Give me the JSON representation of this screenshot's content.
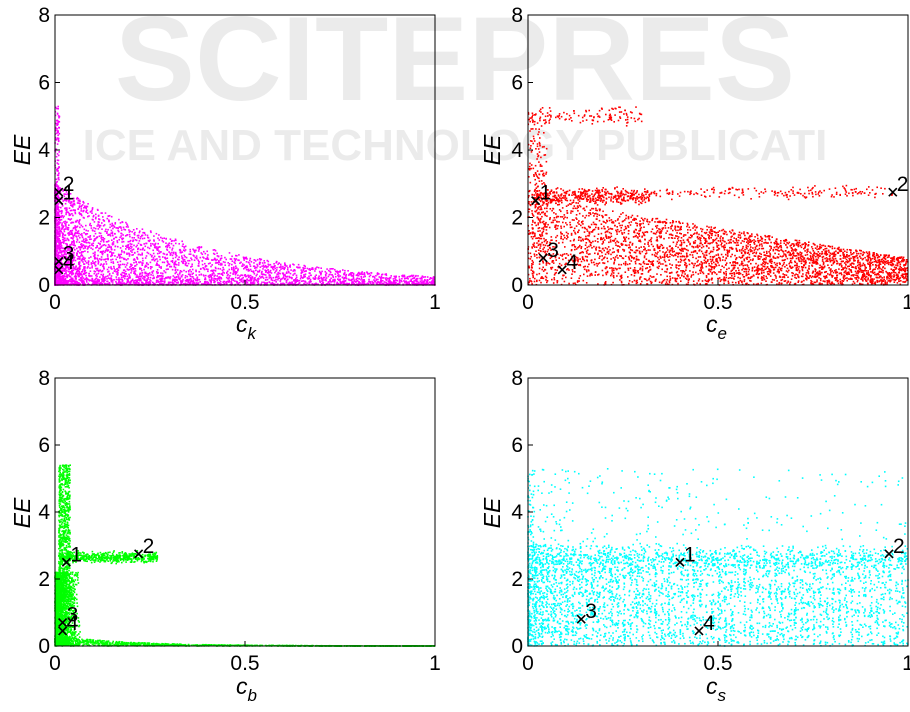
{
  "watermark": {
    "line1": "SCITEPRES",
    "line2": "ICE AND TECHNOLOGY PUBLICATI"
  },
  "chart_data": [
    {
      "type": "scatter",
      "xlabel": "c",
      "xlabel_sub": "k",
      "ylabel": "EE",
      "xlim": [
        0,
        1
      ],
      "ylim": [
        0,
        8
      ],
      "xticks": [
        "0",
        "0.5",
        "1"
      ],
      "yticks": [
        "0",
        "2",
        "4",
        "6",
        "8"
      ],
      "color": "#ff00ff",
      "pattern": "ck",
      "markers": [
        {
          "label": "1",
          "x": 0.01,
          "y": 2.5
        },
        {
          "label": "2",
          "x": 0.01,
          "y": 2.75
        },
        {
          "label": "3",
          "x": 0.01,
          "y": 0.7
        },
        {
          "label": "4",
          "x": 0.01,
          "y": 0.45
        }
      ]
    },
    {
      "type": "scatter",
      "xlabel": "c",
      "xlabel_sub": "e",
      "ylabel": "EE",
      "xlim": [
        0,
        1
      ],
      "ylim": [
        0,
        8
      ],
      "xticks": [
        "0",
        "0.5",
        "1"
      ],
      "yticks": [
        "0",
        "2",
        "4",
        "6",
        "8"
      ],
      "color": "#ff0000",
      "pattern": "ce",
      "markers": [
        {
          "label": "1",
          "x": 0.02,
          "y": 2.5
        },
        {
          "label": "2",
          "x": 0.96,
          "y": 2.75
        },
        {
          "label": "3",
          "x": 0.04,
          "y": 0.8
        },
        {
          "label": "4",
          "x": 0.09,
          "y": 0.45
        }
      ]
    },
    {
      "type": "scatter",
      "xlabel": "c",
      "xlabel_sub": "b",
      "ylabel": "EE",
      "xlim": [
        0,
        1
      ],
      "ylim": [
        0,
        8
      ],
      "xticks": [
        "0",
        "0.5",
        "1"
      ],
      "yticks": [
        "0",
        "2",
        "4",
        "6",
        "8"
      ],
      "color": "#00ff00",
      "pattern": "cb",
      "markers": [
        {
          "label": "1",
          "x": 0.03,
          "y": 2.5
        },
        {
          "label": "2",
          "x": 0.22,
          "y": 2.75
        },
        {
          "label": "3",
          "x": 0.02,
          "y": 0.7
        },
        {
          "label": "4",
          "x": 0.02,
          "y": 0.45
        }
      ]
    },
    {
      "type": "scatter",
      "xlabel": "c",
      "xlabel_sub": "s",
      "ylabel": "EE",
      "xlim": [
        0,
        1
      ],
      "ylim": [
        0,
        8
      ],
      "xticks": [
        "0",
        "0.5",
        "1"
      ],
      "yticks": [
        "0",
        "2",
        "4",
        "6",
        "8"
      ],
      "color": "#00ffff",
      "pattern": "cs",
      "markers": [
        {
          "label": "1",
          "x": 0.4,
          "y": 2.5
        },
        {
          "label": "2",
          "x": 0.95,
          "y": 2.75
        },
        {
          "label": "3",
          "x": 0.14,
          "y": 0.8
        },
        {
          "label": "4",
          "x": 0.45,
          "y": 0.45
        }
      ]
    }
  ]
}
